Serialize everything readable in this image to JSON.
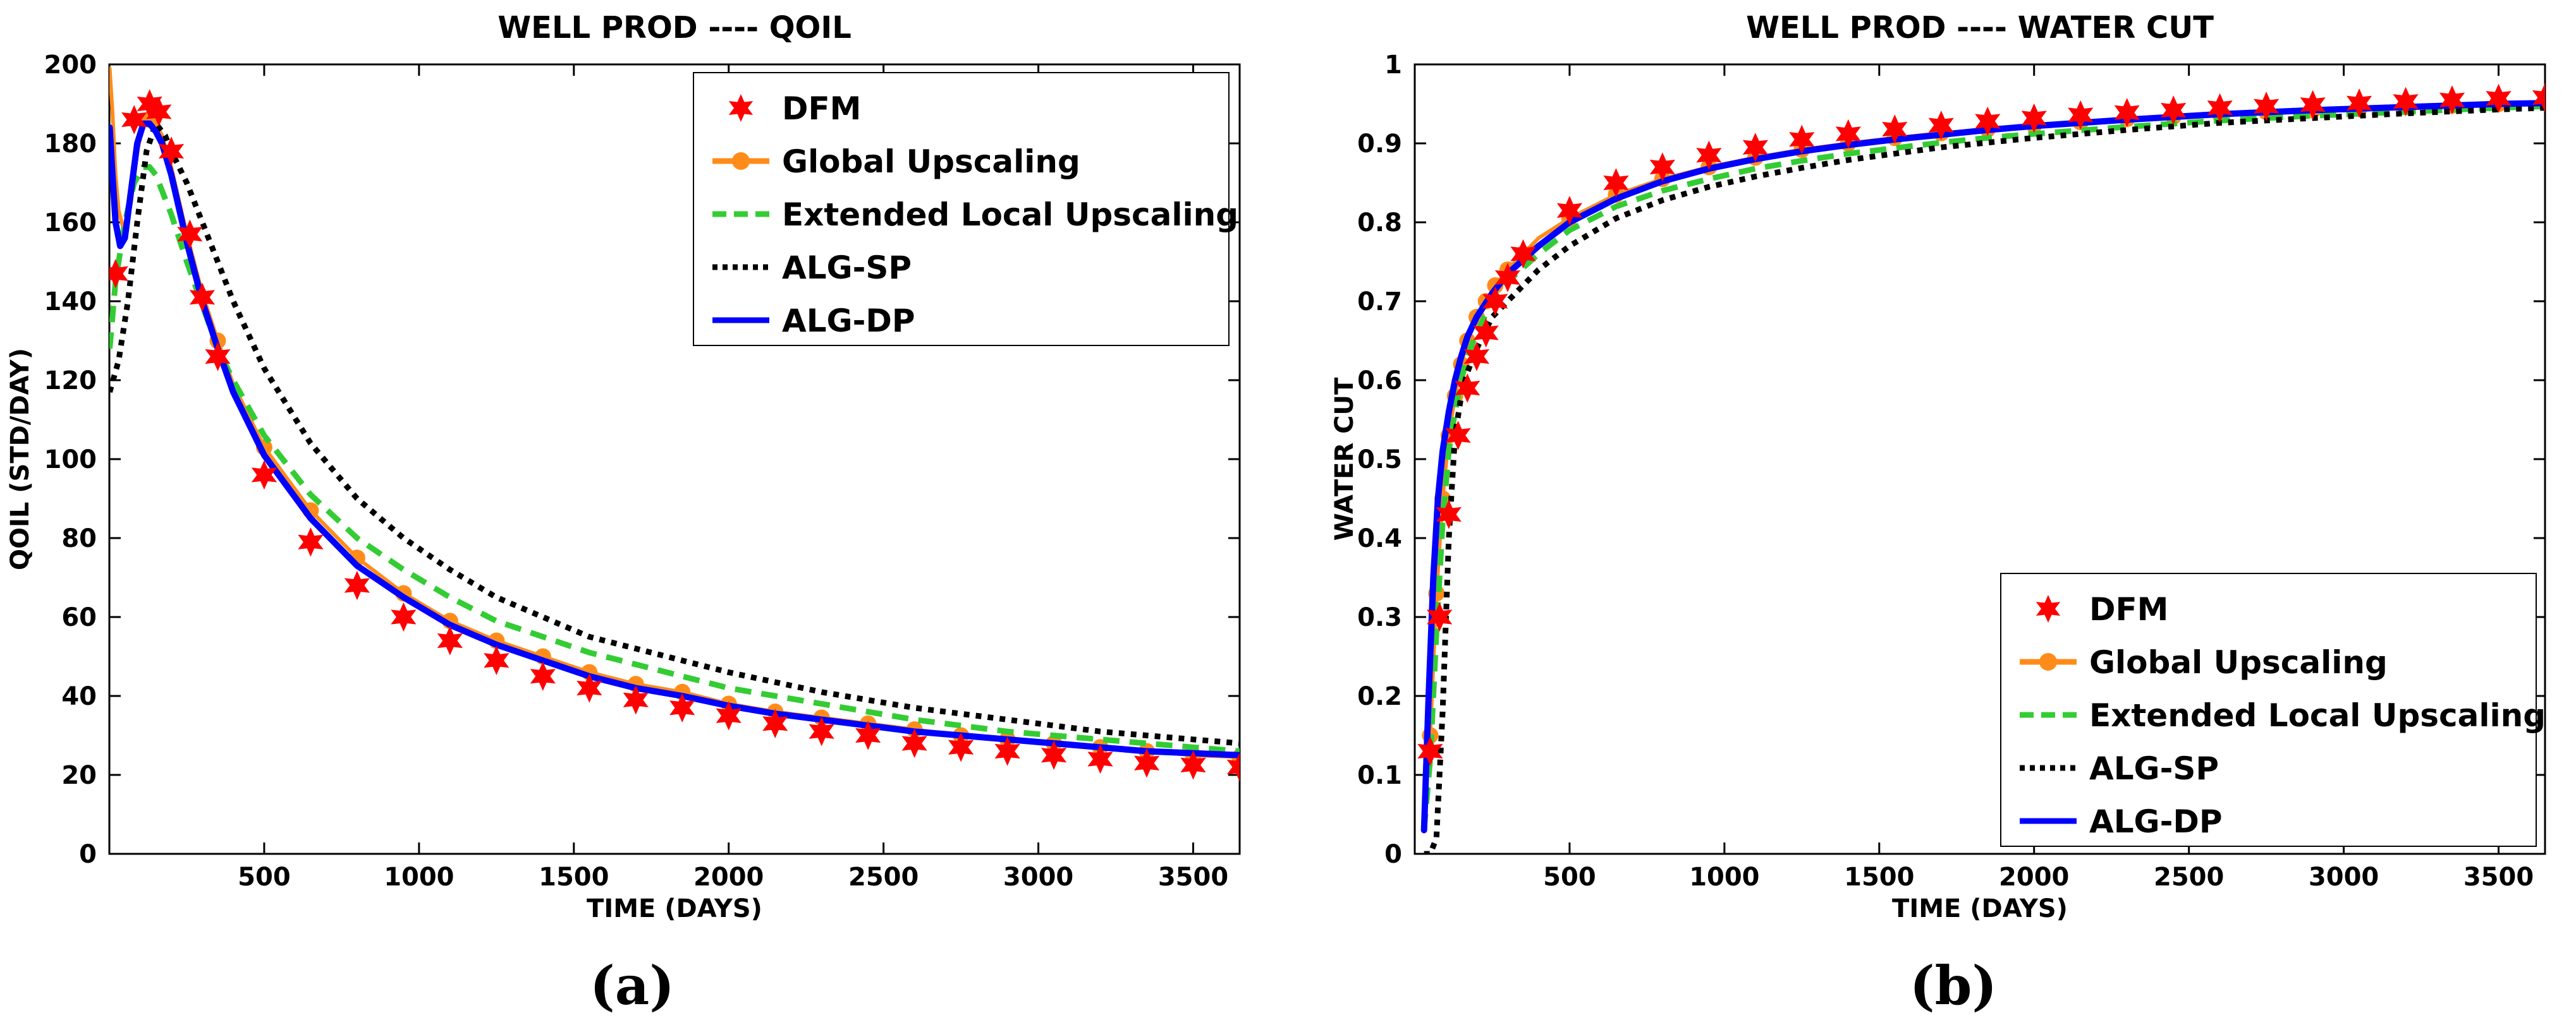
{
  "colors": {
    "dfm": "#ff0000",
    "global": "#ff8c1a",
    "extended": "#33cc33",
    "alg_sp": "#000000",
    "alg_dp": "#0000ff"
  },
  "chart_data": [
    {
      "type": "line",
      "panel_label": "(a)",
      "title": "WELL PROD ---- QOIL",
      "xlabel": "TIME (DAYS)",
      "ylabel": "QOIL (STD/DAY)",
      "xlim": [
        0,
        3650
      ],
      "ylim": [
        0,
        200
      ],
      "xticks": [
        500,
        1000,
        1500,
        2000,
        2500,
        3000,
        3500
      ],
      "yticks": [
        0,
        20,
        40,
        60,
        80,
        100,
        120,
        140,
        160,
        180,
        200
      ],
      "grid": false,
      "legend_position": "top-right",
      "series": [
        {
          "name": "DFM",
          "style": "star-markers",
          "x": [
            20,
            80,
            130,
            160,
            200,
            260,
            300,
            350,
            500,
            650,
            800,
            950,
            1100,
            1250,
            1400,
            1550,
            1700,
            1850,
            2000,
            2150,
            2300,
            2450,
            2600,
            2750,
            2900,
            3050,
            3200,
            3350,
            3500,
            3650
          ],
          "y": [
            147,
            186,
            190,
            188,
            178,
            157,
            141,
            126,
            96,
            79,
            68,
            60,
            54,
            49,
            45,
            42,
            39,
            37,
            35,
            33,
            31,
            30,
            28,
            27,
            26,
            25,
            24,
            23,
            22.5,
            22
          ]
        },
        {
          "name": "Global Upscaling",
          "style": "solid-circle-markers",
          "x": [
            1,
            10,
            20,
            30,
            50,
            70,
            90,
            110,
            130,
            150,
            170,
            200,
            250,
            300,
            350,
            400,
            500,
            650,
            800,
            950,
            1100,
            1250,
            1400,
            1550,
            1700,
            1850,
            2000,
            2150,
            2300,
            2450,
            2600,
            2750,
            2900,
            3050,
            3200,
            3350,
            3500,
            3650
          ],
          "y": [
            199,
            188,
            172,
            163,
            157,
            165,
            178,
            185,
            186,
            185,
            182,
            174,
            157,
            142,
            130,
            119,
            103,
            87,
            75,
            66,
            59,
            54,
            50,
            46,
            43,
            41,
            38,
            36,
            34.5,
            33,
            31.5,
            30,
            29,
            28,
            27,
            26,
            25,
            24.5
          ],
          "marker_x": [
            130,
            350,
            500,
            650,
            800,
            950,
            1100,
            1250,
            1400,
            1550,
            1700,
            1850,
            2000,
            2150,
            2300,
            2450,
            2600,
            2750,
            2900,
            3050,
            3200,
            3350,
            3500,
            3650
          ],
          "marker_y": [
            186,
            130,
            103,
            87,
            75,
            66,
            59,
            54,
            50,
            46,
            43,
            41,
            38,
            36,
            34.5,
            33,
            31.5,
            30,
            29,
            28,
            27,
            26,
            25,
            24.5
          ]
        },
        {
          "name": "Extended Local Upscaling",
          "style": "dashed",
          "x": [
            1,
            20,
            50,
            80,
            110,
            130,
            150,
            170,
            200,
            250,
            300,
            350,
            400,
            500,
            650,
            800,
            950,
            1100,
            1250,
            1400,
            1550,
            1700,
            1850,
            2000,
            2300,
            2600,
            2900,
            3200,
            3500,
            3650
          ],
          "y": [
            128,
            145,
            160,
            170,
            174,
            174,
            172,
            168,
            162,
            150,
            139,
            128,
            120,
            106,
            91,
            80,
            72,
            65,
            59,
            55,
            51,
            48,
            45,
            42,
            38,
            34,
            31,
            29,
            27,
            26
          ]
        },
        {
          "name": "ALG-SP",
          "style": "dotted",
          "x": [
            1,
            30,
            60,
            90,
            120,
            150,
            180,
            200,
            250,
            300,
            350,
            400,
            500,
            650,
            800,
            950,
            1100,
            1250,
            1400,
            1550,
            1700,
            1850,
            2000,
            2300,
            2600,
            2900,
            3200,
            3500,
            3650
          ],
          "y": [
            117,
            125,
            140,
            160,
            178,
            185,
            182,
            178,
            170,
            160,
            150,
            140,
            123,
            104,
            90,
            80,
            72,
            65,
            60,
            55,
            52,
            49,
            46,
            41,
            37,
            34,
            31,
            29,
            28
          ]
        },
        {
          "name": "ALG-DP",
          "style": "solid",
          "x": [
            1,
            10,
            20,
            35,
            50,
            70,
            90,
            110,
            130,
            150,
            170,
            200,
            250,
            300,
            350,
            400,
            500,
            650,
            800,
            950,
            1100,
            1250,
            1400,
            1550,
            1700,
            1850,
            2000,
            2150,
            2300,
            2450,
            2600,
            2750,
            2900,
            3050,
            3200,
            3350,
            3500,
            3650
          ],
          "y": [
            184,
            172,
            160,
            154,
            156,
            168,
            180,
            185,
            185,
            183,
            180,
            172,
            155,
            140,
            128,
            117,
            101,
            85,
            73,
            65,
            58,
            53,
            49,
            45,
            42,
            40,
            37.5,
            35.5,
            34,
            32.5,
            31,
            30,
            29,
            28,
            27,
            26,
            25.5,
            25
          ]
        }
      ]
    },
    {
      "type": "line",
      "panel_label": "(b)",
      "title": "WELL PROD ---- WATER CUT",
      "xlabel": "TIME (DAYS)",
      "ylabel": "WATER CUT",
      "xlim": [
        0,
        3650
      ],
      "ylim": [
        0,
        1
      ],
      "xticks": [
        500,
        1000,
        1500,
        2000,
        2500,
        3000,
        3500
      ],
      "yticks": [
        0,
        0.1,
        0.2,
        0.3,
        0.4,
        0.5,
        0.6,
        0.7,
        0.8,
        0.9,
        1
      ],
      "grid": false,
      "legend_position": "bottom-right",
      "series": [
        {
          "name": "DFM",
          "style": "star-markers",
          "x": [
            50,
            80,
            110,
            140,
            170,
            200,
            230,
            260,
            300,
            350,
            500,
            650,
            800,
            950,
            1100,
            1250,
            1400,
            1550,
            1700,
            1850,
            2000,
            2150,
            2300,
            2450,
            2600,
            2750,
            2900,
            3050,
            3200,
            3350,
            3500,
            3650
          ],
          "y": [
            0.13,
            0.3,
            0.43,
            0.53,
            0.59,
            0.63,
            0.66,
            0.7,
            0.73,
            0.76,
            0.815,
            0.85,
            0.87,
            0.885,
            0.895,
            0.905,
            0.912,
            0.918,
            0.923,
            0.928,
            0.932,
            0.936,
            0.939,
            0.942,
            0.945,
            0.947,
            0.949,
            0.951,
            0.953,
            0.955,
            0.957,
            0.958
          ]
        },
        {
          "name": "Global Upscaling",
          "style": "solid-circle-markers",
          "x": [
            30,
            50,
            70,
            90,
            110,
            130,
            150,
            170,
            200,
            230,
            260,
            300,
            350,
            400,
            500,
            650,
            800,
            950,
            1100,
            1250,
            1400,
            1550,
            1700,
            1850,
            2000,
            2150,
            2300,
            2450,
            2600,
            2750,
            2900,
            3050,
            3200,
            3350,
            3500,
            3650
          ],
          "y": [
            0.05,
            0.15,
            0.33,
            0.45,
            0.53,
            0.58,
            0.62,
            0.65,
            0.68,
            0.7,
            0.72,
            0.74,
            0.76,
            0.78,
            0.805,
            0.835,
            0.855,
            0.87,
            0.882,
            0.892,
            0.9,
            0.907,
            0.913,
            0.918,
            0.923,
            0.927,
            0.931,
            0.934,
            0.937,
            0.94,
            0.942,
            0.944,
            0.946,
            0.948,
            0.95,
            0.952
          ],
          "marker_x": [
            50,
            70,
            90,
            110,
            130,
            150,
            170,
            200,
            230,
            260,
            300,
            350,
            500,
            650,
            800,
            950,
            1100,
            1250,
            1400,
            1550,
            1700,
            1850,
            2000,
            2150,
            2300,
            2450,
            2600,
            2750,
            2900,
            3050,
            3200,
            3350,
            3500,
            3650
          ],
          "marker_y": [
            0.15,
            0.33,
            0.45,
            0.53,
            0.58,
            0.62,
            0.65,
            0.68,
            0.7,
            0.72,
            0.74,
            0.76,
            0.805,
            0.835,
            0.855,
            0.87,
            0.882,
            0.892,
            0.9,
            0.907,
            0.913,
            0.918,
            0.923,
            0.927,
            0.931,
            0.934,
            0.937,
            0.94,
            0.942,
            0.944,
            0.946,
            0.948,
            0.95,
            0.952
          ]
        },
        {
          "name": "Extended Local Upscaling",
          "style": "dashed",
          "x": [
            30,
            50,
            70,
            90,
            110,
            130,
            150,
            170,
            200,
            250,
            300,
            400,
            500,
            650,
            800,
            950,
            1100,
            1250,
            1400,
            1550,
            1700,
            1850,
            2000,
            2300,
            2600,
            2900,
            3200,
            3500,
            3650
          ],
          "y": [
            0.03,
            0.12,
            0.28,
            0.42,
            0.51,
            0.56,
            0.6,
            0.63,
            0.66,
            0.7,
            0.725,
            0.76,
            0.79,
            0.82,
            0.84,
            0.855,
            0.868,
            0.878,
            0.887,
            0.894,
            0.901,
            0.907,
            0.912,
            0.921,
            0.929,
            0.935,
            0.94,
            0.945,
            0.947
          ]
        },
        {
          "name": "ALG-SP",
          "style": "dotted",
          "x": [
            30,
            50,
            70,
            90,
            110,
            130,
            150,
            170,
            200,
            250,
            300,
            400,
            500,
            650,
            800,
            950,
            1100,
            1250,
            1400,
            1550,
            1700,
            1850,
            2000,
            2300,
            2600,
            2900,
            3200,
            3500,
            3650
          ],
          "y": [
            0.0,
            0.0,
            0.02,
            0.18,
            0.4,
            0.53,
            0.58,
            0.61,
            0.64,
            0.68,
            0.7,
            0.74,
            0.77,
            0.805,
            0.828,
            0.845,
            0.858,
            0.869,
            0.879,
            0.887,
            0.895,
            0.901,
            0.907,
            0.917,
            0.926,
            0.932,
            0.938,
            0.943,
            0.945
          ]
        },
        {
          "name": "ALG-DP",
          "style": "solid",
          "x": [
            30,
            45,
            60,
            75,
            90,
            110,
            130,
            150,
            170,
            200,
            250,
            300,
            400,
            500,
            650,
            800,
            950,
            1100,
            1250,
            1400,
            1550,
            1700,
            1850,
            2000,
            2300,
            2600,
            2900,
            3200,
            3500,
            3650
          ],
          "y": [
            0.03,
            0.2,
            0.35,
            0.45,
            0.51,
            0.56,
            0.6,
            0.63,
            0.655,
            0.68,
            0.71,
            0.735,
            0.77,
            0.8,
            0.83,
            0.852,
            0.868,
            0.88,
            0.89,
            0.898,
            0.905,
            0.911,
            0.917,
            0.922,
            0.93,
            0.937,
            0.942,
            0.946,
            0.95,
            0.951
          ]
        }
      ]
    }
  ]
}
